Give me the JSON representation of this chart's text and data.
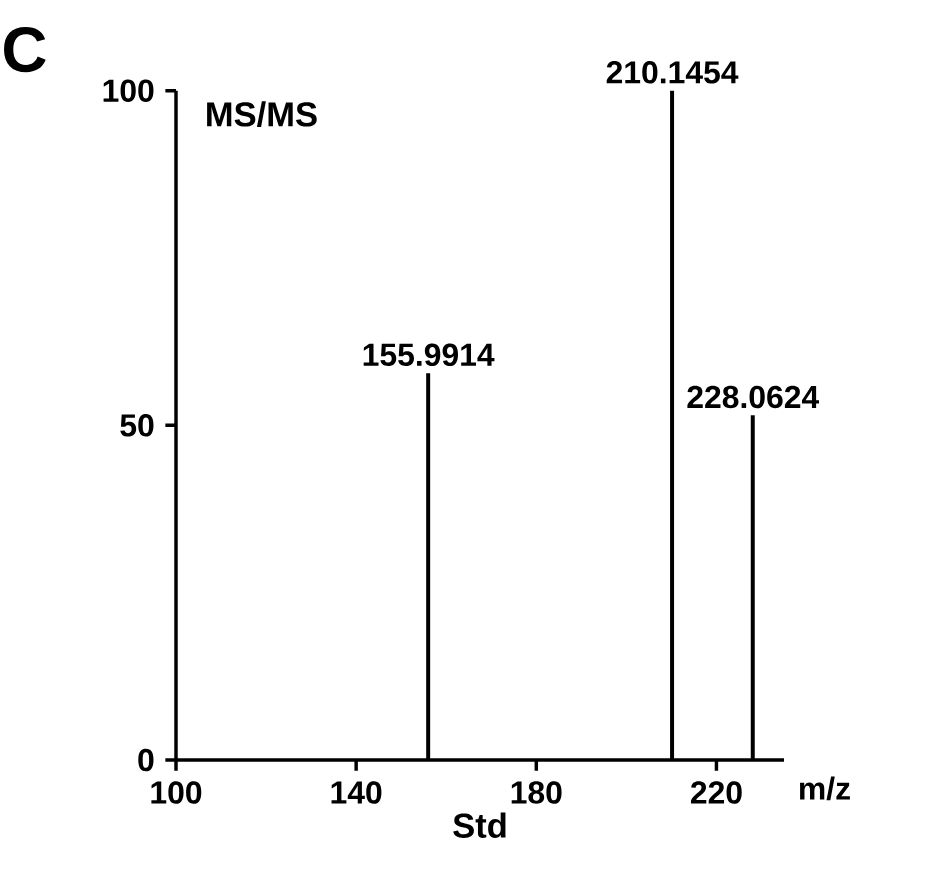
{
  "chart_data": {
    "type": "bar",
    "title": "MS/MS",
    "xlabel": "Std",
    "x": [
      155.9914,
      210.1454,
      228.0624
    ],
    "values": [
      57.8,
      100,
      51.5
    ],
    "color": "#000000",
    "xlim": [
      100,
      235
    ],
    "xticks": [
      100,
      140,
      180,
      220
    ],
    "ylim": [
      0,
      100
    ],
    "yticks": [
      0,
      50,
      100
    ],
    "annotations": [
      "C",
      "m/z",
      {
        "text": "155.9914",
        "x": 155.9914,
        "y": 57.8
      },
      {
        "text": "210.1454",
        "x": 210.1454,
        "y": 100
      },
      {
        "text": "228.0624",
        "x": 228.0624,
        "y": 51.5
      }
    ]
  }
}
